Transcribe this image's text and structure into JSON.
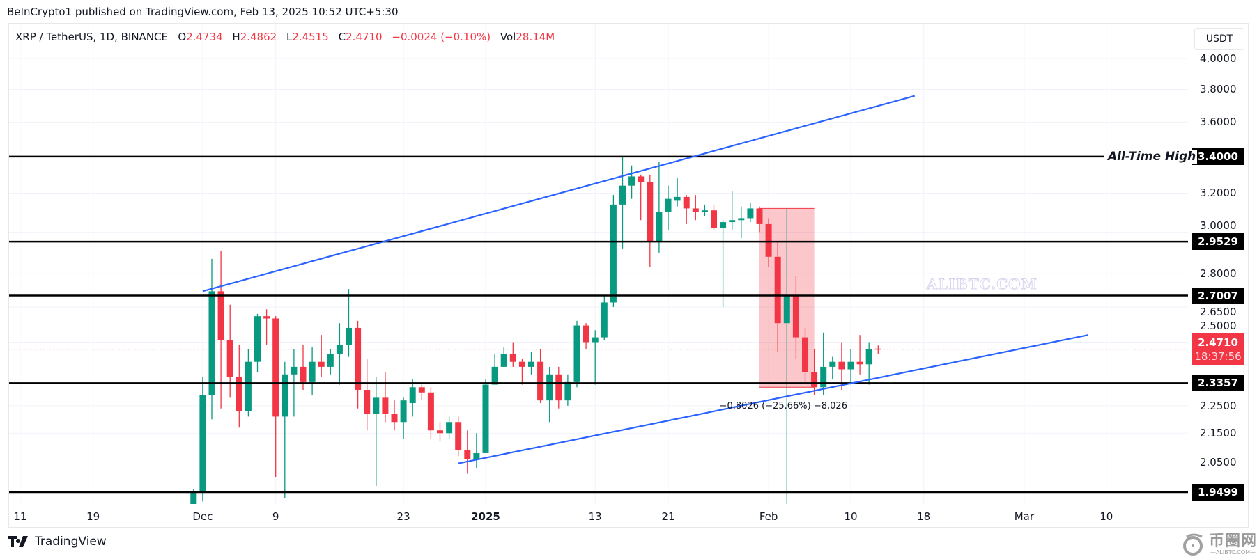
{
  "publisher_line": "BeInCrypto1 published on TradingView.com, Feb 13, 2025 10:52 UTC+5:30",
  "legend": {
    "symbol": "XRP / TetherUS, 1D, BINANCE",
    "open_label": "O",
    "open": "2.4734",
    "high_label": "H",
    "high": "2.4862",
    "low_label": "L",
    "low": "2.4515",
    "close_label": "C",
    "close": "2.4710",
    "change": "−0.0024 (−0.10%)",
    "vol_label": "Vol",
    "vol": "28.14M"
  },
  "currency_button": "USDT",
  "colors": {
    "up": "#089981",
    "down": "#f23645",
    "channel": "#2962ff",
    "level": "#000000",
    "measure_fill": "#f23645"
  },
  "watermark": "ALIBTC.COM",
  "footer": {
    "brand": "TradingView",
    "corner_logo_cn": "币圈网",
    "corner_logo_en": "—ALIBTC.COM—"
  },
  "chart_data": {
    "type": "candlestick",
    "symbol": "XRP / TetherUS",
    "interval": "1D",
    "y_scale": "log",
    "ylim": [
      1.93,
      4.0
    ],
    "grid": true,
    "y_ticks": [
      {
        "value": 4.0,
        "label": "4.0000"
      },
      {
        "value": 3.8,
        "label": "3.8000"
      },
      {
        "value": 3.6,
        "label": "3.6000"
      },
      {
        "value": 3.2,
        "label": "3.2000"
      },
      {
        "value": 3.0,
        "label": "3.0000"
      },
      {
        "value": 2.8,
        "label": "2.8000"
      },
      {
        "value": 2.65,
        "label": "2.6500"
      },
      {
        "value": 2.5,
        "label": "2.5000"
      },
      {
        "value": 2.25,
        "label": "2.2500"
      },
      {
        "value": 2.15,
        "label": "2.1500"
      },
      {
        "value": 2.05,
        "label": "2.0500"
      }
    ],
    "x_ticks": [
      {
        "date": "2024-11-11",
        "label": "11"
      },
      {
        "date": "2024-11-19",
        "label": "19"
      },
      {
        "date": "2024-12-01",
        "label": "Dec"
      },
      {
        "date": "2024-12-09",
        "label": "9"
      },
      {
        "date": "2024-12-23",
        "label": "23"
      },
      {
        "date": "2025-01-01",
        "label": "2025",
        "bold": true
      },
      {
        "date": "2025-01-13",
        "label": "13"
      },
      {
        "date": "2025-01-21",
        "label": "21"
      },
      {
        "date": "2025-02-01",
        "label": "Feb"
      },
      {
        "date": "2025-02-10",
        "label": "10"
      },
      {
        "date": "2025-02-18",
        "label": "18"
      },
      {
        "date": "2025-03-01",
        "label": "Mar"
      },
      {
        "date": "2025-03-10",
        "label": "10"
      }
    ],
    "candles_columns": [
      "date",
      "open",
      "high",
      "low",
      "close"
    ],
    "candles": [
      [
        "2024-11-30",
        1.82,
        1.96,
        1.8,
        1.95
      ],
      [
        "2024-12-01",
        1.95,
        2.36,
        1.92,
        2.29
      ],
      [
        "2024-12-02",
        2.29,
        2.87,
        2.2,
        2.72
      ],
      [
        "2024-12-03",
        2.72,
        2.91,
        2.24,
        2.51
      ],
      [
        "2024-12-04",
        2.51,
        2.66,
        2.28,
        2.36
      ],
      [
        "2024-12-05",
        2.36,
        2.49,
        2.17,
        2.23
      ],
      [
        "2024-12-06",
        2.23,
        2.47,
        2.21,
        2.42
      ],
      [
        "2024-12-07",
        2.42,
        2.62,
        2.38,
        2.61
      ],
      [
        "2024-12-08",
        2.61,
        2.64,
        2.49,
        2.6
      ],
      [
        "2024-12-09",
        2.6,
        2.61,
        2.0,
        2.21
      ],
      [
        "2024-12-10",
        2.21,
        2.42,
        1.93,
        2.37
      ],
      [
        "2024-12-11",
        2.37,
        2.47,
        2.21,
        2.4
      ],
      [
        "2024-12-12",
        2.4,
        2.49,
        2.31,
        2.34
      ],
      [
        "2024-12-13",
        2.34,
        2.48,
        2.29,
        2.42
      ],
      [
        "2024-12-14",
        2.42,
        2.53,
        2.36,
        2.4
      ],
      [
        "2024-12-15",
        2.4,
        2.47,
        2.37,
        2.45
      ],
      [
        "2024-12-16",
        2.45,
        2.58,
        2.33,
        2.49
      ],
      [
        "2024-12-17",
        2.49,
        2.73,
        2.44,
        2.56
      ],
      [
        "2024-12-18",
        2.56,
        2.59,
        2.24,
        2.31
      ],
      [
        "2024-12-19",
        2.31,
        2.43,
        2.16,
        2.22
      ],
      [
        "2024-12-20",
        2.22,
        2.36,
        1.97,
        2.28
      ],
      [
        "2024-12-21",
        2.28,
        2.38,
        2.19,
        2.22
      ],
      [
        "2024-12-22",
        2.22,
        2.27,
        2.16,
        2.19
      ],
      [
        "2024-12-23",
        2.19,
        2.28,
        2.13,
        2.27
      ],
      [
        "2024-12-24",
        2.26,
        2.35,
        2.21,
        2.32
      ],
      [
        "2024-12-25",
        2.32,
        2.33,
        2.27,
        2.3
      ],
      [
        "2024-12-26",
        2.3,
        2.32,
        2.13,
        2.16
      ],
      [
        "2024-12-27",
        2.16,
        2.19,
        2.12,
        2.15
      ],
      [
        "2024-12-28",
        2.15,
        2.21,
        2.13,
        2.19
      ],
      [
        "2024-12-29",
        2.19,
        2.21,
        2.07,
        2.09
      ],
      [
        "2024-12-30",
        2.09,
        2.16,
        2.01,
        2.06
      ],
      [
        "2024-12-31",
        2.06,
        2.15,
        2.03,
        2.08
      ],
      [
        "2025-01-01",
        2.08,
        2.35,
        2.08,
        2.33
      ],
      [
        "2025-01-02",
        2.33,
        2.45,
        2.33,
        2.4
      ],
      [
        "2025-01-03",
        2.4,
        2.48,
        2.4,
        2.45
      ],
      [
        "2025-01-04",
        2.45,
        2.5,
        2.4,
        2.42
      ],
      [
        "2025-01-05",
        2.42,
        2.43,
        2.33,
        2.4
      ],
      [
        "2025-01-06",
        2.4,
        2.46,
        2.37,
        2.42
      ],
      [
        "2025-01-07",
        2.42,
        2.47,
        2.26,
        2.27
      ],
      [
        "2025-01-08",
        2.27,
        2.4,
        2.19,
        2.37
      ],
      [
        "2025-01-09",
        2.37,
        2.4,
        2.24,
        2.27
      ],
      [
        "2025-01-10",
        2.27,
        2.37,
        2.25,
        2.34
      ],
      [
        "2025-01-11",
        2.34,
        2.59,
        2.32,
        2.57
      ],
      [
        "2025-01-12",
        2.57,
        2.58,
        2.47,
        2.5
      ],
      [
        "2025-01-13",
        2.5,
        2.55,
        2.33,
        2.52
      ],
      [
        "2025-01-14",
        2.52,
        2.7,
        2.51,
        2.67
      ],
      [
        "2025-01-15",
        2.67,
        3.19,
        2.65,
        3.14
      ],
      [
        "2025-01-16",
        3.14,
        3.4,
        2.92,
        3.24
      ],
      [
        "2025-01-17",
        3.24,
        3.35,
        3.17,
        3.29
      ],
      [
        "2025-01-18",
        3.29,
        3.3,
        3.06,
        3.26
      ],
      [
        "2025-01-19",
        3.26,
        3.3,
        2.83,
        2.95
      ],
      [
        "2025-01-20",
        2.95,
        3.37,
        2.9,
        3.1
      ],
      [
        "2025-01-21",
        3.1,
        3.24,
        3.01,
        3.17
      ],
      [
        "2025-01-22",
        3.16,
        3.28,
        3.13,
        3.18
      ],
      [
        "2025-01-23",
        3.18,
        3.19,
        3.04,
        3.12
      ],
      [
        "2025-01-24",
        3.12,
        3.19,
        3.06,
        3.1
      ],
      [
        "2025-01-25",
        3.1,
        3.14,
        3.08,
        3.11
      ],
      [
        "2025-01-26",
        3.11,
        3.14,
        3.01,
        3.02
      ],
      [
        "2025-01-27",
        3.02,
        3.06,
        2.65,
        3.05
      ],
      [
        "2025-01-28",
        3.05,
        3.21,
        3.01,
        3.06
      ],
      [
        "2025-01-29",
        3.06,
        3.13,
        2.97,
        3.07
      ],
      [
        "2025-01-30",
        3.07,
        3.15,
        3.05,
        3.12
      ],
      [
        "2025-01-31",
        3.12,
        3.13,
        3.0,
        3.04
      ],
      [
        "2025-02-01",
        3.04,
        3.07,
        2.83,
        2.88
      ],
      [
        "2025-02-02",
        2.88,
        2.95,
        2.46,
        2.58
      ],
      [
        "2025-02-03",
        2.58,
        3.12,
        1.77,
        2.7
      ],
      [
        "2025-02-04",
        2.7,
        2.79,
        2.43,
        2.52
      ],
      [
        "2025-02-05",
        2.52,
        2.56,
        2.34,
        2.38
      ],
      [
        "2025-02-06",
        2.38,
        2.47,
        2.29,
        2.32
      ],
      [
        "2025-02-07",
        2.32,
        2.54,
        2.29,
        2.4
      ],
      [
        "2025-02-08",
        2.4,
        2.44,
        2.35,
        2.42
      ],
      [
        "2025-02-09",
        2.42,
        2.5,
        2.31,
        2.39
      ],
      [
        "2025-02-10",
        2.39,
        2.47,
        2.33,
        2.42
      ],
      [
        "2025-02-11",
        2.42,
        2.53,
        2.37,
        2.41
      ],
      [
        "2025-02-12",
        2.41,
        2.5,
        2.33,
        2.47
      ],
      [
        "2025-02-13",
        2.4734,
        2.4862,
        2.4515,
        2.471
      ]
    ],
    "levels": [
      {
        "value": 3.4,
        "label": "3.4000",
        "annotation": "All-Time High"
      },
      {
        "value": 2.9529,
        "label": "2.9529"
      },
      {
        "value": 2.7007,
        "label": "2.7007"
      },
      {
        "value": 2.3357,
        "label": "2.3357"
      },
      {
        "value": 1.9499,
        "label": "1.9499"
      }
    ],
    "trendlines": [
      {
        "from": {
          "date": "2024-12-01",
          "price": 2.72
        },
        "to": {
          "date": "2025-02-17",
          "price": 3.76
        }
      },
      {
        "from": {
          "date": "2024-12-29",
          "price": 2.045
        },
        "to": {
          "date": "2025-03-08",
          "price": 2.53
        }
      }
    ],
    "measurement": {
      "from": {
        "date": "2025-01-31",
        "price": 3.12
      },
      "to": {
        "date": "2025-02-06",
        "price": 2.32
      },
      "label": "−0.8026 (−25.66%) −8,026"
    },
    "last_price": {
      "value": 2.471,
      "label": "2.4710",
      "countdown": "18:37:56"
    }
  }
}
